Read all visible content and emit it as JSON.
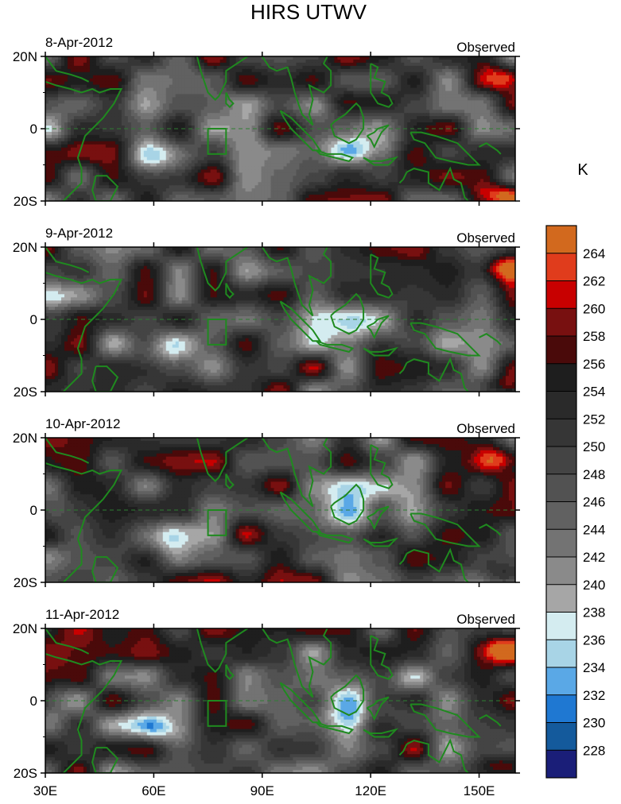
{
  "chart_data": {
    "type": "heatmap",
    "title": "HIRS UTWV",
    "units": "K",
    "panels": [
      {
        "date": "8-Apr-2012",
        "label": "Observed",
        "seed": 3
      },
      {
        "date": "9-Apr-2012",
        "label": "Observed",
        "seed": 11
      },
      {
        "date": "10-Apr-2012",
        "label": "Observed",
        "seed": 23
      },
      {
        "date": "11-Apr-2012",
        "label": "Observed",
        "seed": 37
      }
    ],
    "lat_ticks": [
      "20N",
      "0",
      "20S"
    ],
    "lon_ticks": [
      "30E",
      "60E",
      "90E",
      "120E",
      "150E"
    ],
    "lat_range": [
      -20,
      20
    ],
    "lon_range": [
      30,
      160
    ],
    "colorbar": {
      "levels": [
        "264",
        "262",
        "260",
        "258",
        "256",
        "254",
        "252",
        "250",
        "248",
        "246",
        "244",
        "242",
        "240",
        "238",
        "236",
        "234",
        "232",
        "230",
        "228"
      ],
      "colors": [
        "#d2691e",
        "#e03c1c",
        "#c80000",
        "#781010",
        "#4a0a0a",
        "#1e1e1e",
        "#2a2a2a",
        "#363636",
        "#444444",
        "#525252",
        "#616161",
        "#737373",
        "#8a8a8a",
        "#a6a6a6",
        "#d4ecf0",
        "#a8d4e6",
        "#5aa8e6",
        "#1f78d2",
        "#145a9c",
        "#1a1e78"
      ]
    },
    "box_region": {
      "lon": [
        75,
        80
      ],
      "lat": [
        -7,
        0
      ]
    }
  }
}
